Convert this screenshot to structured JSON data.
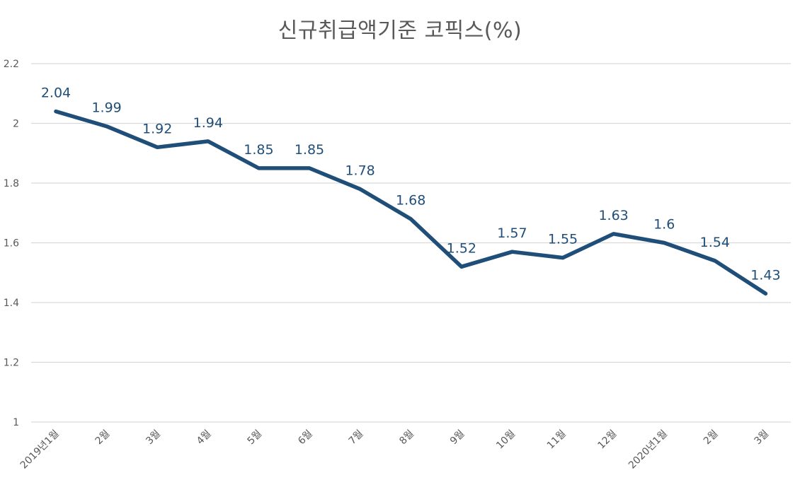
{
  "chart_data": {
    "type": "line",
    "title": "신규취급액기준 코픽스(%)",
    "categories": [
      "2019년1월",
      "2월",
      "3월",
      "4월",
      "5월",
      "6월",
      "7월",
      "8월",
      "9월",
      "10월",
      "11월",
      "12월",
      "2020년1월",
      "2월",
      "3월"
    ],
    "values": [
      2.04,
      1.99,
      1.92,
      1.94,
      1.85,
      1.85,
      1.78,
      1.68,
      1.52,
      1.57,
      1.55,
      1.63,
      1.6,
      1.54,
      1.43
    ],
    "data_labels": [
      "2.04",
      "1.99",
      "1.92",
      "1.94",
      "1.85",
      "1.85",
      "1.78",
      "1.68",
      "1.52",
      "1.57",
      "1.55",
      "1.63",
      "1.6",
      "1.54",
      "1.43"
    ],
    "y_ticks": [
      1,
      1.2,
      1.4,
      1.6,
      1.8,
      2,
      2.2
    ],
    "y_tick_labels": [
      "1",
      "1.2",
      "1.4",
      "1.6",
      "1.8",
      "2",
      "2.2"
    ],
    "ylim": [
      1,
      2.2
    ],
    "grid": true,
    "legend": "none",
    "colors": {
      "line": "#1F4E79",
      "label": "#1F4E79",
      "grid": "#D9D9D9",
      "tick_text": "#595959",
      "title": "#595959"
    }
  }
}
